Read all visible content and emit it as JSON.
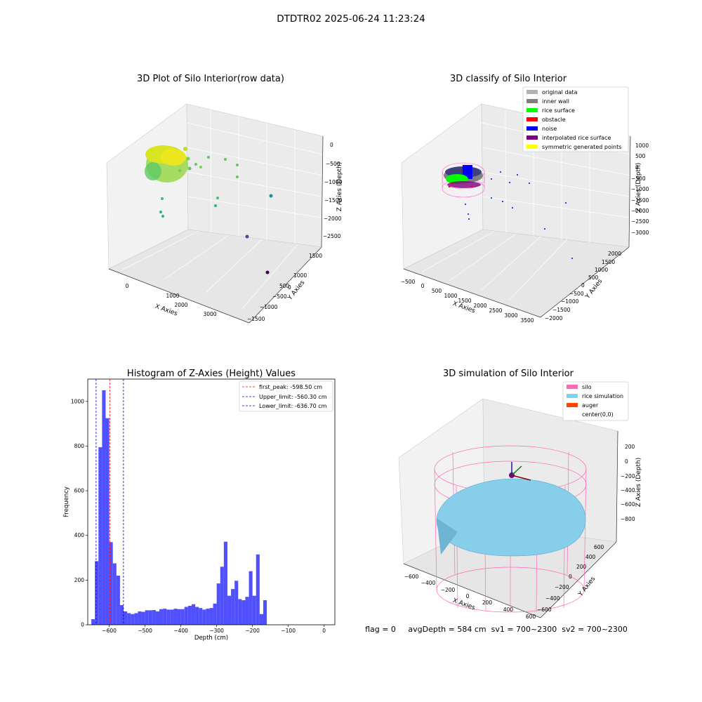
{
  "page": {
    "suptitle": "DTDTR02 2025-06-24 11:23:24",
    "status": "flag = 0     avgDepth = 584 cm  sv1 = 700~2300  sv2 = 700~2300"
  },
  "chart_data": [
    {
      "type": "scatter",
      "title": "3D Plot of Silo Interior(row data)",
      "xlabel": "X Axies",
      "ylabel": "Y Axies",
      "zlabel": "Z Axies (Depth)",
      "xticks": [
        "0",
        "1000",
        "2000",
        "3000"
      ],
      "yticks": [
        "1500",
        "1000",
        "500",
        "0",
        "−500",
        "−1000",
        "−1500"
      ],
      "zticks": [
        "0",
        "−500",
        "−1000",
        "−1500",
        "−2000",
        "−2500"
      ],
      "colormap": [
        "#440154",
        "#3b528b",
        "#21918c",
        "#5ec962",
        "#fde725"
      ]
    },
    {
      "type": "scatter",
      "title": "3D classify of Silo Interior",
      "xlabel": "X Axies",
      "ylabel": "Y Axies",
      "zlabel": "Z Axies (Depth)",
      "xticks": [
        "−500",
        "0",
        "500",
        "1000",
        "1500",
        "2000",
        "2500",
        "3000",
        "3500"
      ],
      "yticks": [
        "2000",
        "1500",
        "1000",
        "500",
        "0",
        "−500",
        "−1000",
        "−1500",
        "−2000"
      ],
      "zticks": [
        "1000",
        "500",
        "0",
        "−500",
        "−1000",
        "−1500",
        "−2000",
        "−2500",
        "−3000"
      ],
      "legend": [
        {
          "name": "original data",
          "color": "#b3b3b3"
        },
        {
          "name": "inner wall",
          "color": "#808080"
        },
        {
          "name": "rice surface",
          "color": "#00ff00"
        },
        {
          "name": "obstacle",
          "color": "#ff0000"
        },
        {
          "name": "noise",
          "color": "#0000ff"
        },
        {
          "name": "interpolated rice surface",
          "color": "#800080"
        },
        {
          "name": "symmetric generated points",
          "color": "#ffff00"
        }
      ],
      "legend_position": "top-right"
    },
    {
      "type": "bar",
      "title": "Histogram of Z-Axies (Height) Values",
      "xlabel": "Depth (cm)",
      "ylabel": "Frequency",
      "xlim": [
        -660,
        30
      ],
      "ylim": [
        0,
        1100
      ],
      "xticks": [
        -600,
        -500,
        -400,
        -300,
        -200,
        -100,
        0
      ],
      "yticks": [
        0,
        200,
        400,
        600,
        800,
        1000
      ],
      "bin_start": -650,
      "bin_width": 10,
      "bar_color": "#5050ff",
      "values": [
        25,
        285,
        795,
        1050,
        925,
        370,
        275,
        220,
        88,
        60,
        52,
        48,
        52,
        60,
        58,
        65,
        65,
        66,
        60,
        70,
        72,
        68,
        68,
        72,
        70,
        70,
        80,
        85,
        92,
        80,
        75,
        68,
        72,
        75,
        95,
        185,
        260,
        372,
        130,
        160,
        197,
        115,
        110,
        125,
        240,
        130,
        315,
        48,
        110
      ],
      "lines": [
        {
          "name": "first_peak: -598.50 cm",
          "x": -598.5,
          "color": "#ff0000"
        },
        {
          "name": "Upper_limit: -560.30 cm",
          "x": -560.3,
          "color": "#0000cc"
        },
        {
          "name": "Lower_limit: -636.70 cm",
          "x": -636.7,
          "color": "#0000cc"
        }
      ],
      "legend_position": "top-right"
    },
    {
      "type": "surface",
      "title": "3D simulation of Silo Interior",
      "xlabel": "X Axies",
      "ylabel": "Y Axies",
      "zlabel": "Z Axies (Depth)",
      "xticks": [
        "−600",
        "−400",
        "−200",
        "0",
        "200",
        "400",
        "600"
      ],
      "yticks": [
        "600",
        "400",
        "200",
        "0",
        "−200",
        "−400",
        "−600"
      ],
      "zticks": [
        "200",
        "0",
        "−200",
        "−400",
        "−600",
        "−800"
      ],
      "legend": [
        {
          "name": "silo",
          "color": "#ff69b4"
        },
        {
          "name": "rice simulation",
          "color": "#87ceeb"
        },
        {
          "name": "auger",
          "color": "#ff4500"
        },
        {
          "name": "center(0,0)",
          "color": "#ffffff"
        }
      ],
      "legend_position": "top-right"
    }
  ]
}
